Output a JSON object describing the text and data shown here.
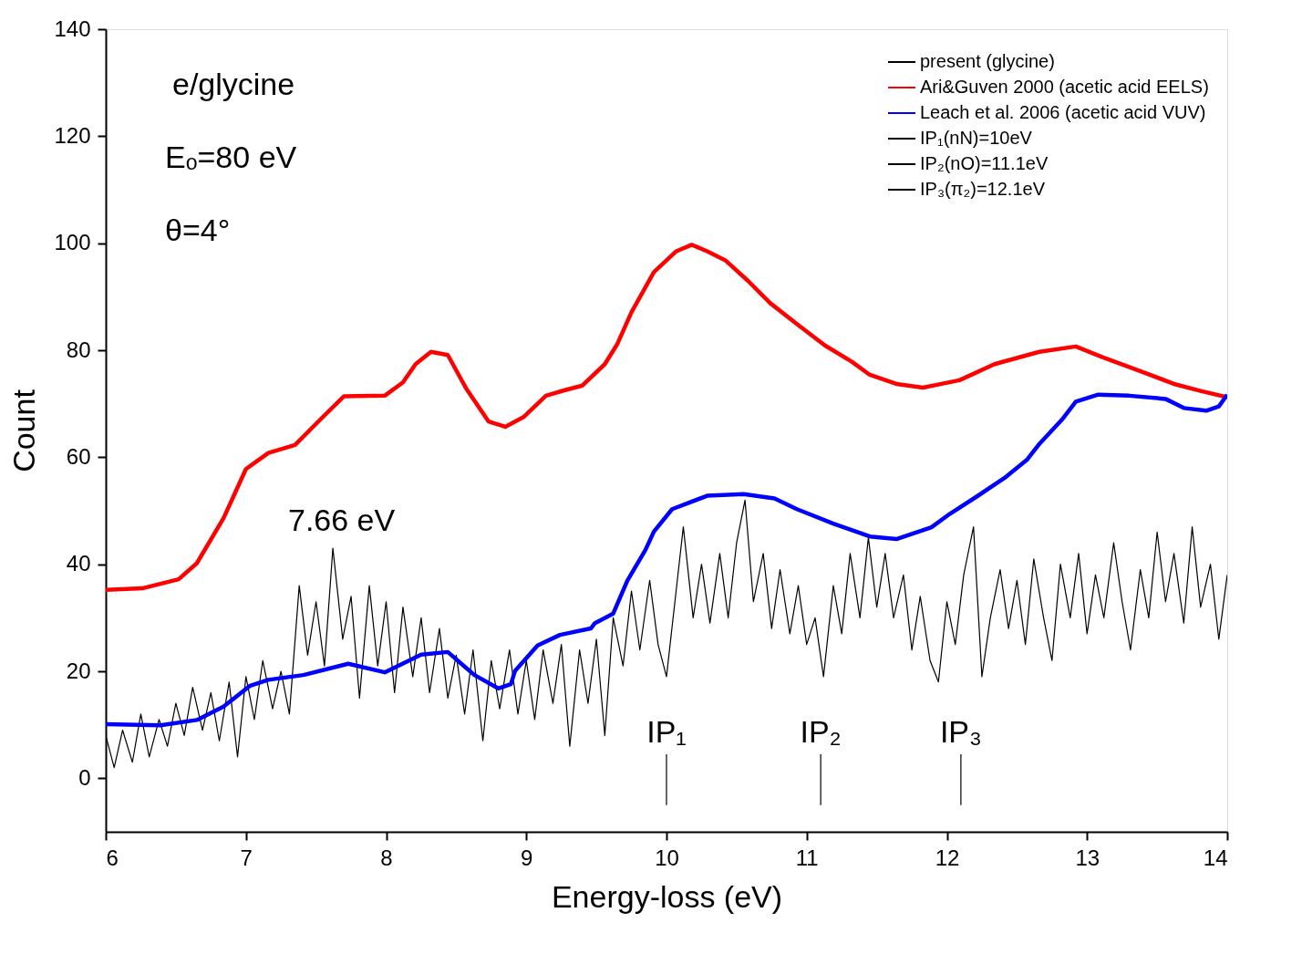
{
  "chart_data": {
    "type": "line",
    "xlabel": "Energy-loss (eV)",
    "ylabel": "Count",
    "xlim": [
      6,
      14
    ],
    "xticks": [
      6,
      7,
      8,
      9,
      10,
      11,
      12,
      13,
      14
    ],
    "ylim": [
      -10,
      140
    ],
    "yticks": [
      0,
      20,
      40,
      60,
      80,
      100,
      120,
      140
    ],
    "grid": false,
    "legend": "top right",
    "marker": "none",
    "line_style": "solid",
    "annotations": [
      "e/glycine",
      "Eₒ=80 eV",
      "θ=4°",
      "7.66 eV",
      {
        "text": "IP₁",
        "x": 10,
        "y": 4.5
      },
      {
        "text": "IP₂",
        "x": 11.1,
        "y": 4.5
      },
      {
        "text": "IP₃",
        "x": 12.1,
        "y": 4.5
      }
    ],
    "series": [
      {
        "name": "present (glycine)",
        "color": "#000000",
        "x": [
          6.0,
          6.06,
          6.12,
          6.19,
          6.25,
          6.31,
          6.38,
          6.44,
          6.5,
          6.56,
          6.62,
          6.69,
          6.75,
          6.81,
          6.88,
          6.94,
          7.0,
          7.06,
          7.12,
          7.19,
          7.25,
          7.31,
          7.38,
          7.44,
          7.5,
          7.56,
          7.62,
          7.69,
          7.75,
          7.81,
          7.88,
          7.94,
          8.0,
          8.06,
          8.12,
          8.19,
          8.25,
          8.31,
          8.38,
          8.44,
          8.5,
          8.56,
          8.62,
          8.69,
          8.75,
          8.81,
          8.88,
          8.94,
          9.0,
          9.06,
          9.12,
          9.19,
          9.25,
          9.31,
          9.38,
          9.44,
          9.5,
          9.56,
          9.62,
          9.69,
          9.75,
          9.81,
          9.88,
          9.94,
          10.0,
          10.06,
          10.12,
          10.19,
          10.25,
          10.31,
          10.38,
          10.44,
          10.5,
          10.56,
          10.62,
          10.69,
          10.75,
          10.81,
          10.88,
          10.94,
          11.0,
          11.06,
          11.12,
          11.19,
          11.25,
          11.31,
          11.38,
          11.44,
          11.5,
          11.56,
          11.62,
          11.69,
          11.75,
          11.81,
          11.88,
          11.94,
          12.0,
          12.06,
          12.12,
          12.19,
          12.25,
          12.31,
          12.38,
          12.44,
          12.5,
          12.56,
          12.62,
          12.69,
          12.75,
          12.81,
          12.88,
          12.94,
          13.0,
          13.06,
          13.12,
          13.19,
          13.25,
          13.31,
          13.38,
          13.44,
          13.5,
          13.56,
          13.62,
          13.69,
          13.75,
          13.81,
          13.88,
          13.94,
          14.0
        ],
        "values": [
          8,
          2,
          9,
          3,
          12,
          4,
          11,
          6,
          14,
          8,
          17,
          9,
          16,
          7,
          18,
          4,
          19,
          11,
          22,
          13,
          20,
          12,
          36,
          23,
          33,
          21,
          43,
          26,
          34,
          15,
          36,
          21,
          33,
          16,
          32,
          19,
          30,
          16,
          28,
          15,
          23,
          12,
          24,
          7,
          22,
          13,
          24,
          12,
          22,
          11,
          24,
          14,
          25,
          6,
          24,
          14,
          26,
          8,
          30,
          21,
          35,
          24,
          37,
          25,
          19,
          33,
          47,
          30,
          40,
          29,
          42,
          30,
          44,
          52,
          33,
          42,
          28,
          39,
          27,
          36,
          25,
          30,
          19,
          36,
          27,
          42,
          30,
          45,
          32,
          42,
          30,
          38,
          24,
          34,
          22,
          18,
          33,
          25,
          38,
          47,
          19,
          30,
          39,
          28,
          37,
          25,
          41,
          30,
          22,
          40,
          30,
          42,
          27,
          38,
          30,
          44,
          33,
          24,
          39,
          30,
          46,
          33,
          42,
          29,
          47,
          32,
          40,
          26,
          38
        ]
      },
      {
        "name": "Ari&Guven 2000 (acetic acid EELS)",
        "color": "#ff0000",
        "x": [
          6.0,
          6.26,
          6.52,
          6.65,
          6.84,
          7.0,
          7.16,
          7.35,
          7.54,
          7.7,
          7.99,
          8.12,
          8.21,
          8.32,
          8.44,
          8.57,
          8.73,
          8.85,
          8.98,
          9.14,
          9.27,
          9.4,
          9.56,
          9.65,
          9.75,
          9.91,
          10.07,
          10.18,
          10.29,
          10.42,
          10.58,
          10.74,
          10.93,
          11.13,
          11.32,
          11.45,
          11.64,
          11.83,
          12.09,
          12.34,
          12.66,
          12.92,
          13.11,
          13.37,
          13.62,
          13.81,
          14.0
        ],
        "values": [
          35.2,
          35.5,
          37.2,
          40.2,
          48.6,
          57.8,
          60.8,
          62.3,
          67.3,
          71.4,
          71.5,
          74.0,
          77.4,
          79.7,
          79.1,
          72.9,
          66.7,
          65.7,
          67.5,
          71.5,
          72.5,
          73.4,
          77.4,
          81.2,
          87.1,
          94.6,
          98.5,
          99.7,
          98.5,
          96.8,
          93.0,
          88.8,
          84.9,
          80.9,
          77.9,
          75.4,
          73.7,
          73.0,
          74.4,
          77.4,
          79.7,
          80.7,
          78.7,
          76.2,
          73.7,
          72.4,
          71.2
        ]
      },
      {
        "name": "Leach et al. 2006 (acetic acid VUV)",
        "color": "#0000ff",
        "x": [
          6.0,
          6.39,
          6.65,
          6.84,
          7.03,
          7.16,
          7.41,
          7.73,
          7.99,
          8.25,
          8.44,
          8.63,
          8.8,
          8.89,
          8.92,
          9.08,
          9.24,
          9.46,
          9.49,
          9.62,
          9.72,
          9.85,
          9.91,
          10.04,
          10.29,
          10.55,
          10.77,
          10.93,
          11.19,
          11.45,
          11.64,
          11.89,
          12.02,
          12.21,
          12.41,
          12.57,
          12.66,
          12.82,
          12.92,
          13.08,
          13.3,
          13.56,
          13.69,
          13.85,
          13.94,
          14.0
        ],
        "values": [
          10.1,
          9.9,
          10.9,
          13.4,
          17.3,
          18.4,
          19.3,
          21.4,
          19.8,
          23.1,
          23.6,
          19.3,
          16.8,
          17.6,
          20.1,
          24.8,
          26.8,
          28.0,
          29.0,
          30.8,
          36.9,
          42.7,
          46.1,
          50.3,
          52.8,
          53.1,
          52.3,
          50.3,
          47.6,
          45.2,
          44.7,
          46.9,
          49.4,
          52.6,
          56.1,
          59.5,
          62.5,
          67.0,
          70.4,
          71.7,
          71.5,
          70.9,
          69.2,
          68.7,
          69.5,
          71.7
        ]
      },
      {
        "name": "IP₁(nN)=10eV",
        "color": "#000000",
        "x": [
          10,
          10
        ],
        "values": [
          -5,
          4.5
        ]
      },
      {
        "name": "IP₂(nO)=11.1eV",
        "color": "#000000",
        "x": [
          11.1,
          11.1
        ],
        "values": [
          -5,
          4.5
        ]
      },
      {
        "name": "IP₃(π₂)=12.1eV",
        "color": "#000000",
        "x": [
          12.1,
          12.1
        ],
        "values": [
          -5,
          4.5
        ]
      }
    ]
  }
}
